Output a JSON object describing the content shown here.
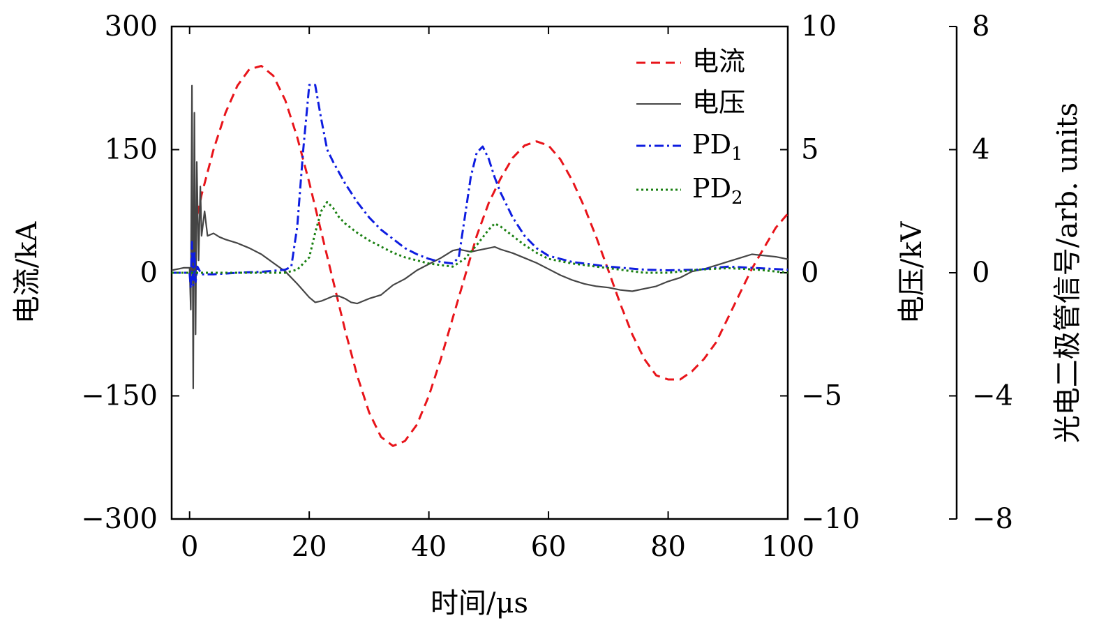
{
  "chart_data": {
    "type": "line",
    "xlabel": "时间/μs",
    "xlim": [
      -3,
      100
    ],
    "x_ticks": [
      0,
      20,
      40,
      60,
      80,
      100
    ],
    "x_tick_labels": [
      "0",
      "20",
      "40",
      "60",
      "80",
      "100"
    ],
    "axes": {
      "current": {
        "label": "电流/kA",
        "lim": [
          -300,
          300
        ],
        "ticks": [
          -300,
          -150,
          0,
          150,
          300
        ],
        "tick_labels": [
          "−300",
          "−150",
          "0",
          "150",
          "300"
        ]
      },
      "voltage": {
        "label": "电压/kV",
        "lim": [
          -10,
          10
        ],
        "ticks": [
          -10,
          -5,
          0,
          5,
          10
        ],
        "tick_labels": [
          "−10",
          "−5",
          "0",
          "5",
          "10"
        ]
      },
      "photodiode": {
        "label": "光电二极管信号/arb. units",
        "lim": [
          -8,
          8
        ],
        "ticks": [
          -8,
          -4,
          0,
          4,
          8
        ],
        "tick_labels": [
          "−8",
          "−4",
          "0",
          "4",
          "8"
        ]
      }
    },
    "legend_position": "top-right",
    "series": [
      {
        "name": "电流",
        "axis": "current",
        "color": "#e8141a",
        "style": "dashed",
        "points": [
          [
            0.3,
            0
          ],
          [
            0.5,
            40
          ],
          [
            1,
            60
          ],
          [
            2,
            95
          ],
          [
            4,
            150
          ],
          [
            6,
            195
          ],
          [
            8,
            228
          ],
          [
            10,
            248
          ],
          [
            12,
            252
          ],
          [
            14,
            240
          ],
          [
            16,
            210
          ],
          [
            18,
            165
          ],
          [
            20,
            110
          ],
          [
            22,
            50
          ],
          [
            24,
            -10
          ],
          [
            26,
            -70
          ],
          [
            28,
            -125
          ],
          [
            30,
            -170
          ],
          [
            32,
            -200
          ],
          [
            34,
            -211
          ],
          [
            36,
            -205
          ],
          [
            38,
            -185
          ],
          [
            40,
            -150
          ],
          [
            42,
            -105
          ],
          [
            44,
            -55
          ],
          [
            46,
            -5
          ],
          [
            48,
            45
          ],
          [
            50,
            85
          ],
          [
            52,
            115
          ],
          [
            54,
            140
          ],
          [
            56,
            155
          ],
          [
            58,
            160
          ],
          [
            60,
            155
          ],
          [
            62,
            138
          ],
          [
            64,
            112
          ],
          [
            66,
            80
          ],
          [
            68,
            43
          ],
          [
            70,
            3
          ],
          [
            72,
            -38
          ],
          [
            74,
            -75
          ],
          [
            76,
            -105
          ],
          [
            78,
            -125
          ],
          [
            80,
            -130
          ],
          [
            82,
            -130
          ],
          [
            84,
            -120
          ],
          [
            86,
            -105
          ],
          [
            88,
            -85
          ],
          [
            90,
            -55
          ],
          [
            92,
            -25
          ],
          [
            94,
            5
          ],
          [
            96,
            30
          ],
          [
            98,
            55
          ],
          [
            100,
            72
          ]
        ]
      },
      {
        "name": "电压",
        "axis": "voltage",
        "color": "#454545",
        "style": "solid",
        "points": [
          [
            -3,
            0.1
          ],
          [
            -1,
            0.2
          ],
          [
            0,
            0.2
          ],
          [
            0.2,
            -1.5
          ],
          [
            0.4,
            7.6
          ],
          [
            0.6,
            -4.7
          ],
          [
            0.8,
            6.5
          ],
          [
            1,
            -2.5
          ],
          [
            1.2,
            4.5
          ],
          [
            1.5,
            0.5
          ],
          [
            1.8,
            3.5
          ],
          [
            2,
            1.5
          ],
          [
            2.5,
            2.5
          ],
          [
            3,
            1.5
          ],
          [
            4,
            1.6
          ],
          [
            5,
            1.45
          ],
          [
            6,
            1.35
          ],
          [
            8,
            1.2
          ],
          [
            10,
            1.0
          ],
          [
            12,
            0.75
          ],
          [
            14,
            0.4
          ],
          [
            16,
            0.05
          ],
          [
            18,
            -0.45
          ],
          [
            20,
            -1.0
          ],
          [
            21,
            -1.2
          ],
          [
            22,
            -1.15
          ],
          [
            23,
            -1.05
          ],
          [
            24,
            -0.95
          ],
          [
            25,
            -0.95
          ],
          [
            26,
            -1.05
          ],
          [
            27,
            -1.2
          ],
          [
            28,
            -1.25
          ],
          [
            29,
            -1.15
          ],
          [
            30,
            -1.05
          ],
          [
            32,
            -0.9
          ],
          [
            34,
            -0.5
          ],
          [
            36,
            -0.25
          ],
          [
            38,
            0.1
          ],
          [
            40,
            0.35
          ],
          [
            42,
            0.6
          ],
          [
            44,
            0.9
          ],
          [
            45,
            0.95
          ],
          [
            46,
            0.9
          ],
          [
            47,
            0.85
          ],
          [
            48,
            0.9
          ],
          [
            50,
            1.0
          ],
          [
            51,
            1.05
          ],
          [
            52,
            0.95
          ],
          [
            54,
            0.8
          ],
          [
            56,
            0.6
          ],
          [
            58,
            0.4
          ],
          [
            60,
            0.15
          ],
          [
            62,
            -0.1
          ],
          [
            64,
            -0.3
          ],
          [
            66,
            -0.45
          ],
          [
            68,
            -0.55
          ],
          [
            70,
            -0.6
          ],
          [
            72,
            -0.7
          ],
          [
            74,
            -0.75
          ],
          [
            76,
            -0.65
          ],
          [
            78,
            -0.55
          ],
          [
            80,
            -0.35
          ],
          [
            82,
            -0.2
          ],
          [
            84,
            0.05
          ],
          [
            86,
            0.15
          ],
          [
            88,
            0.3
          ],
          [
            90,
            0.45
          ],
          [
            92,
            0.6
          ],
          [
            94,
            0.75
          ],
          [
            96,
            0.7
          ],
          [
            98,
            0.65
          ],
          [
            100,
            0.55
          ]
        ]
      },
      {
        "name": "PD1",
        "axis": "photodiode",
        "color": "#0e1de0",
        "style": "dashdot",
        "points": [
          [
            -3,
            0
          ],
          [
            0,
            0
          ],
          [
            0.2,
            -0.5
          ],
          [
            0.4,
            1.0
          ],
          [
            0.6,
            -0.4
          ],
          [
            0.8,
            0.7
          ],
          [
            1,
            -0.3
          ],
          [
            1.3,
            0.2
          ],
          [
            2,
            -0.05
          ],
          [
            4,
            -0.05
          ],
          [
            8,
            0
          ],
          [
            12,
            0.03
          ],
          [
            16,
            0.1
          ],
          [
            17,
            0.2
          ],
          [
            18,
            1.5
          ],
          [
            19,
            4.0
          ],
          [
            20,
            6.1
          ],
          [
            21,
            6.1
          ],
          [
            22,
            5.0
          ],
          [
            23,
            4.0
          ],
          [
            24,
            3.6
          ],
          [
            26,
            2.9
          ],
          [
            28,
            2.3
          ],
          [
            30,
            1.8
          ],
          [
            32,
            1.4
          ],
          [
            34,
            1.1
          ],
          [
            36,
            0.8
          ],
          [
            38,
            0.6
          ],
          [
            40,
            0.45
          ],
          [
            42,
            0.35
          ],
          [
            44,
            0.3
          ],
          [
            45,
            0.5
          ],
          [
            46,
            1.8
          ],
          [
            47,
            3.1
          ],
          [
            48,
            3.9
          ],
          [
            49,
            4.1
          ],
          [
            50,
            3.7
          ],
          [
            51,
            3.1
          ],
          [
            52,
            2.6
          ],
          [
            54,
            1.8
          ],
          [
            56,
            1.2
          ],
          [
            58,
            0.8
          ],
          [
            60,
            0.55
          ],
          [
            64,
            0.35
          ],
          [
            70,
            0.2
          ],
          [
            76,
            0.1
          ],
          [
            80,
            0.08
          ],
          [
            85,
            0.1
          ],
          [
            90,
            0.2
          ],
          [
            95,
            0.15
          ],
          [
            100,
            0.1
          ]
        ]
      },
      {
        "name": "PD2",
        "axis": "photodiode",
        "color": "#1a8012",
        "style": "dotted",
        "points": [
          [
            -3,
            0
          ],
          [
            10,
            0
          ],
          [
            16,
            0
          ],
          [
            18,
            0.1
          ],
          [
            20,
            0.5
          ],
          [
            21,
            1.3
          ],
          [
            22,
            2.0
          ],
          [
            23,
            2.3
          ],
          [
            24,
            2.1
          ],
          [
            25,
            1.8
          ],
          [
            26,
            1.6
          ],
          [
            28,
            1.3
          ],
          [
            30,
            1.05
          ],
          [
            32,
            0.85
          ],
          [
            34,
            0.65
          ],
          [
            36,
            0.5
          ],
          [
            38,
            0.4
          ],
          [
            40,
            0.3
          ],
          [
            42,
            0.25
          ],
          [
            44,
            0.2
          ],
          [
            46,
            0.45
          ],
          [
            48,
            0.9
          ],
          [
            50,
            1.4
          ],
          [
            51,
            1.6
          ],
          [
            52,
            1.5
          ],
          [
            54,
            1.2
          ],
          [
            56,
            0.9
          ],
          [
            58,
            0.65
          ],
          [
            60,
            0.45
          ],
          [
            64,
            0.3
          ],
          [
            70,
            0.15
          ],
          [
            76,
            0
          ],
          [
            80,
            0
          ],
          [
            85,
            0.1
          ],
          [
            90,
            0.15
          ],
          [
            95,
            0.1
          ],
          [
            100,
            0
          ]
        ]
      }
    ],
    "legend_labels": {
      "PD1": {
        "base": "PD",
        "sub": "1"
      },
      "PD2": {
        "base": "PD",
        "sub": "2"
      }
    }
  }
}
